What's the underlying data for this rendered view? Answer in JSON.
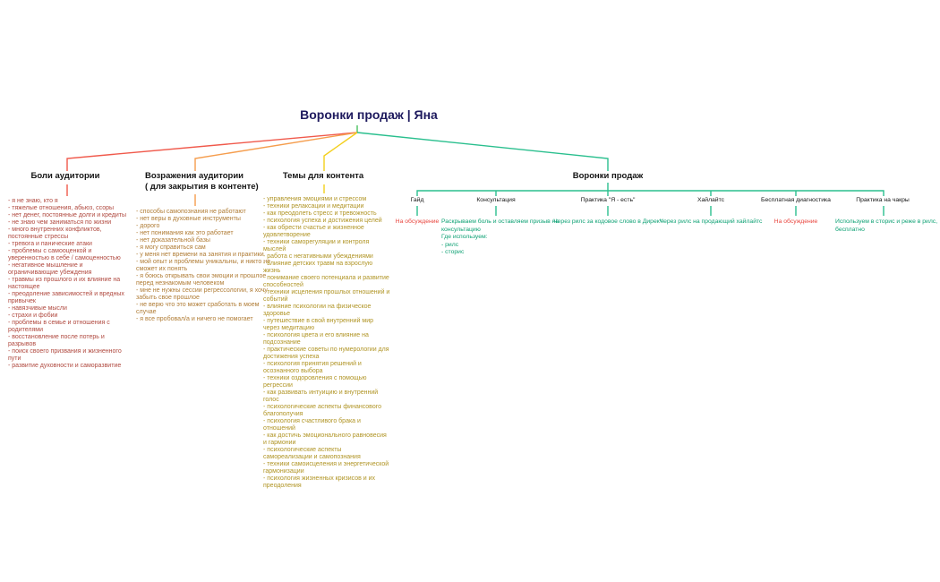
{
  "root": {
    "title": "Воронки продаж | Яна"
  },
  "branches": [
    {
      "label": "Боли аудитории",
      "items": [
        "- я не знаю, кто я",
        "- тяжелые отношения, абьюз, ссоры",
        "- нет денег, постоянные долги и кредиты",
        "- не знаю чем заниматься по жизни",
        "- много внутренних конфликтов, постоянные стрессы",
        "- тревога и панические атаки",
        "- проблемы с самооценкой и уверенностью в себе / самоценностью",
        "- негативное мышление и ограничивающие убеждения",
        "- травмы из прошлого и их влияние на настоящее",
        "- преодоление зависимостей и вредных привычек",
        "- навязчивые мысли",
        "- страхи и фобии",
        "- проблемы в семье и отношения с родителями",
        "- восстановление после потерь и разрывов",
        "- поиск своего призвания и жизненного пути",
        "- развитие духовности и саморазвитие"
      ]
    },
    {
      "label": "Возражения аудитории\n( для закрытия в контенте)",
      "items": [
        "- способы самопознания не работают",
        "- нет веры в духовные инструменты",
        "- дорого",
        "- нет понимания как это работает",
        "- нет доказательной базы",
        "- я могу справиться сам",
        "- у меня нет времени на занятия и практики",
        "- мой опыт и проблемы уникальны, и никто не сможет их понять",
        "- я боюсь открывать свои эмоции и прошлое перед незнакомым человеком",
        "- мне не нужны сессии регрессологии, я хочу забыть свое прошлое",
        "- не верю что это может сработать в моем случае",
        "- я все пробовал/а и ничего не помогает"
      ]
    },
    {
      "label": "Темы для контента",
      "items": [
        "- управления эмоциями и стрессом",
        "- техники релаксации и медитации",
        "- как преодолеть стресс и тревожность",
        "- психология успеха и достижения целей",
        "- как обрести счастье и жизненное удовлетворение",
        "- техники саморегуляции и контроля мыслей",
        "- работа с негативными убеждениями",
        "- влияние детских травм на взрослую жизнь",
        "- понимание своего потенциала и развитие способностей",
        "- техники исцеления прошлых отношений и событий",
        "- влияние психологии на физическое здоровье",
        "- путешествие в свой внутренний мир через медитацию",
        "- психология цвета и его влияние на подсознание",
        "- практические советы по нумерологии для достижения успеха",
        "- психология принятия решений и осознанного выбора",
        "- техники оздоровления с помощью регрессии",
        "- как развивать интуицию и внутренний голос",
        "- психологические аспекты финансового благополучия",
        "- психология счастливого брака и отношений",
        "- как достичь эмоционального равновесия и гармонии",
        "- психологические аспекты самореализации и самопознания",
        "- техники самоисцеления и энергетической гармонизации",
        "- психология жизненных кризисов и их преодоления"
      ]
    },
    {
      "label": "Воронки продаж",
      "children": [
        {
          "label": "Гайд",
          "note": "На обсуждение",
          "status": "red"
        },
        {
          "label": "Консультация",
          "note": "Раскрываем боль и оставляем призыв на\nконсультацию\nГде используем:\n- рилс\n- сторис",
          "status": "green"
        },
        {
          "label": "Практика \"Я - есть\"",
          "note": "Через рилс за кодовое слово в Директ",
          "status": "green"
        },
        {
          "label": "Хайлайтс",
          "note": "Через рилс на продающий хайлайтс",
          "status": "green"
        },
        {
          "label": "Бесплатная диагностика",
          "note": "На обсуждение",
          "status": "red"
        },
        {
          "label": "Практика на чакры",
          "note": "Используем в сторис и реже в рилс,\nбесплатно",
          "status": "green"
        }
      ]
    }
  ],
  "colors": {
    "root_text": "#1e1a5e",
    "pains_line": "#f0594b",
    "pains_text": "#b0493f",
    "objections_line": "#f59d4d",
    "objections_text": "#b07c35",
    "topics_line": "#f3cf1d",
    "topics_text": "#b09424",
    "funnels_line": "#2abf8e",
    "root_tick": "#49c25f",
    "note_green": "#0ea174",
    "note_red": "#e9463f"
  }
}
